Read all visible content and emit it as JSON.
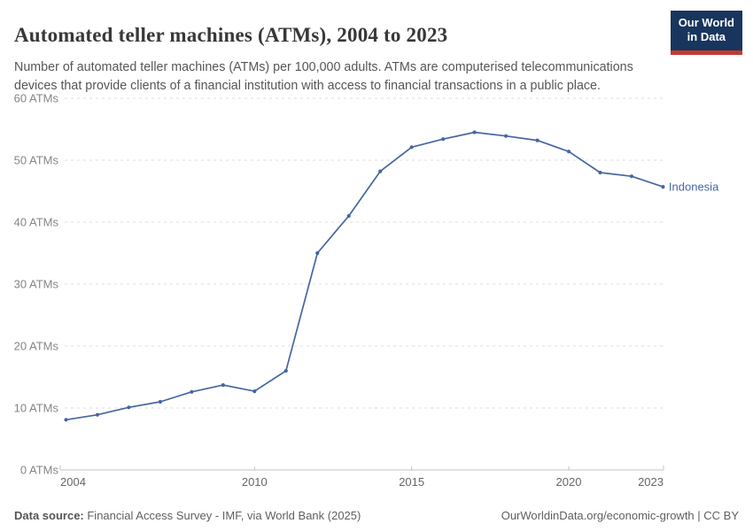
{
  "header": {
    "title": "Automated teller machines (ATMs), 2004 to 2023",
    "subtitle": "Number of automated teller machines (ATMs) per 100,000 adults. ATMs are computerised telecommunications devices that provide clients of a financial institution with access to financial transactions in a public place.",
    "logo": {
      "line1": "Our World",
      "line2": "in Data",
      "bg_color": "#18365d",
      "accent_color": "#c23a33"
    }
  },
  "chart_data": {
    "type": "line",
    "title": "Automated teller machines (ATMs), 2004 to 2023",
    "xlabel": "",
    "ylabel": "ATMs per 100,000 adults",
    "xlim": [
      2004,
      2023
    ],
    "ylim": [
      0,
      60
    ],
    "x": [
      2004,
      2005,
      2006,
      2007,
      2008,
      2009,
      2010,
      2011,
      2012,
      2013,
      2014,
      2015,
      2016,
      2017,
      2018,
      2019,
      2020,
      2021,
      2022,
      2023
    ],
    "series": [
      {
        "name": "Indonesia",
        "color": "#4566a3",
        "values": [
          8.1,
          8.9,
          10.1,
          11.0,
          12.6,
          13.7,
          12.7,
          16.0,
          35.0,
          41.0,
          48.2,
          52.1,
          53.4,
          54.5,
          53.9,
          53.2,
          51.4,
          48.0,
          47.4,
          45.7
        ]
      }
    ],
    "x_ticks": [
      2004,
      2010,
      2015,
      2020,
      2023
    ],
    "y_ticks": [
      0,
      10,
      20,
      30,
      40,
      50,
      60
    ],
    "y_tick_suffix": " ATMs",
    "grid": "horizontal-dashed",
    "legend_position": "end-of-line-label",
    "colors": {
      "grid": "#dcdcdc",
      "axis": "#c4c4c4",
      "y_label": "#858585",
      "x_label": "#666666"
    }
  },
  "footer": {
    "source_label": "Data source:",
    "source_text": " Financial Access Survey - IMF, via World Bank (2025)",
    "right_text": "OurWorldinData.org/economic-growth | CC BY"
  }
}
